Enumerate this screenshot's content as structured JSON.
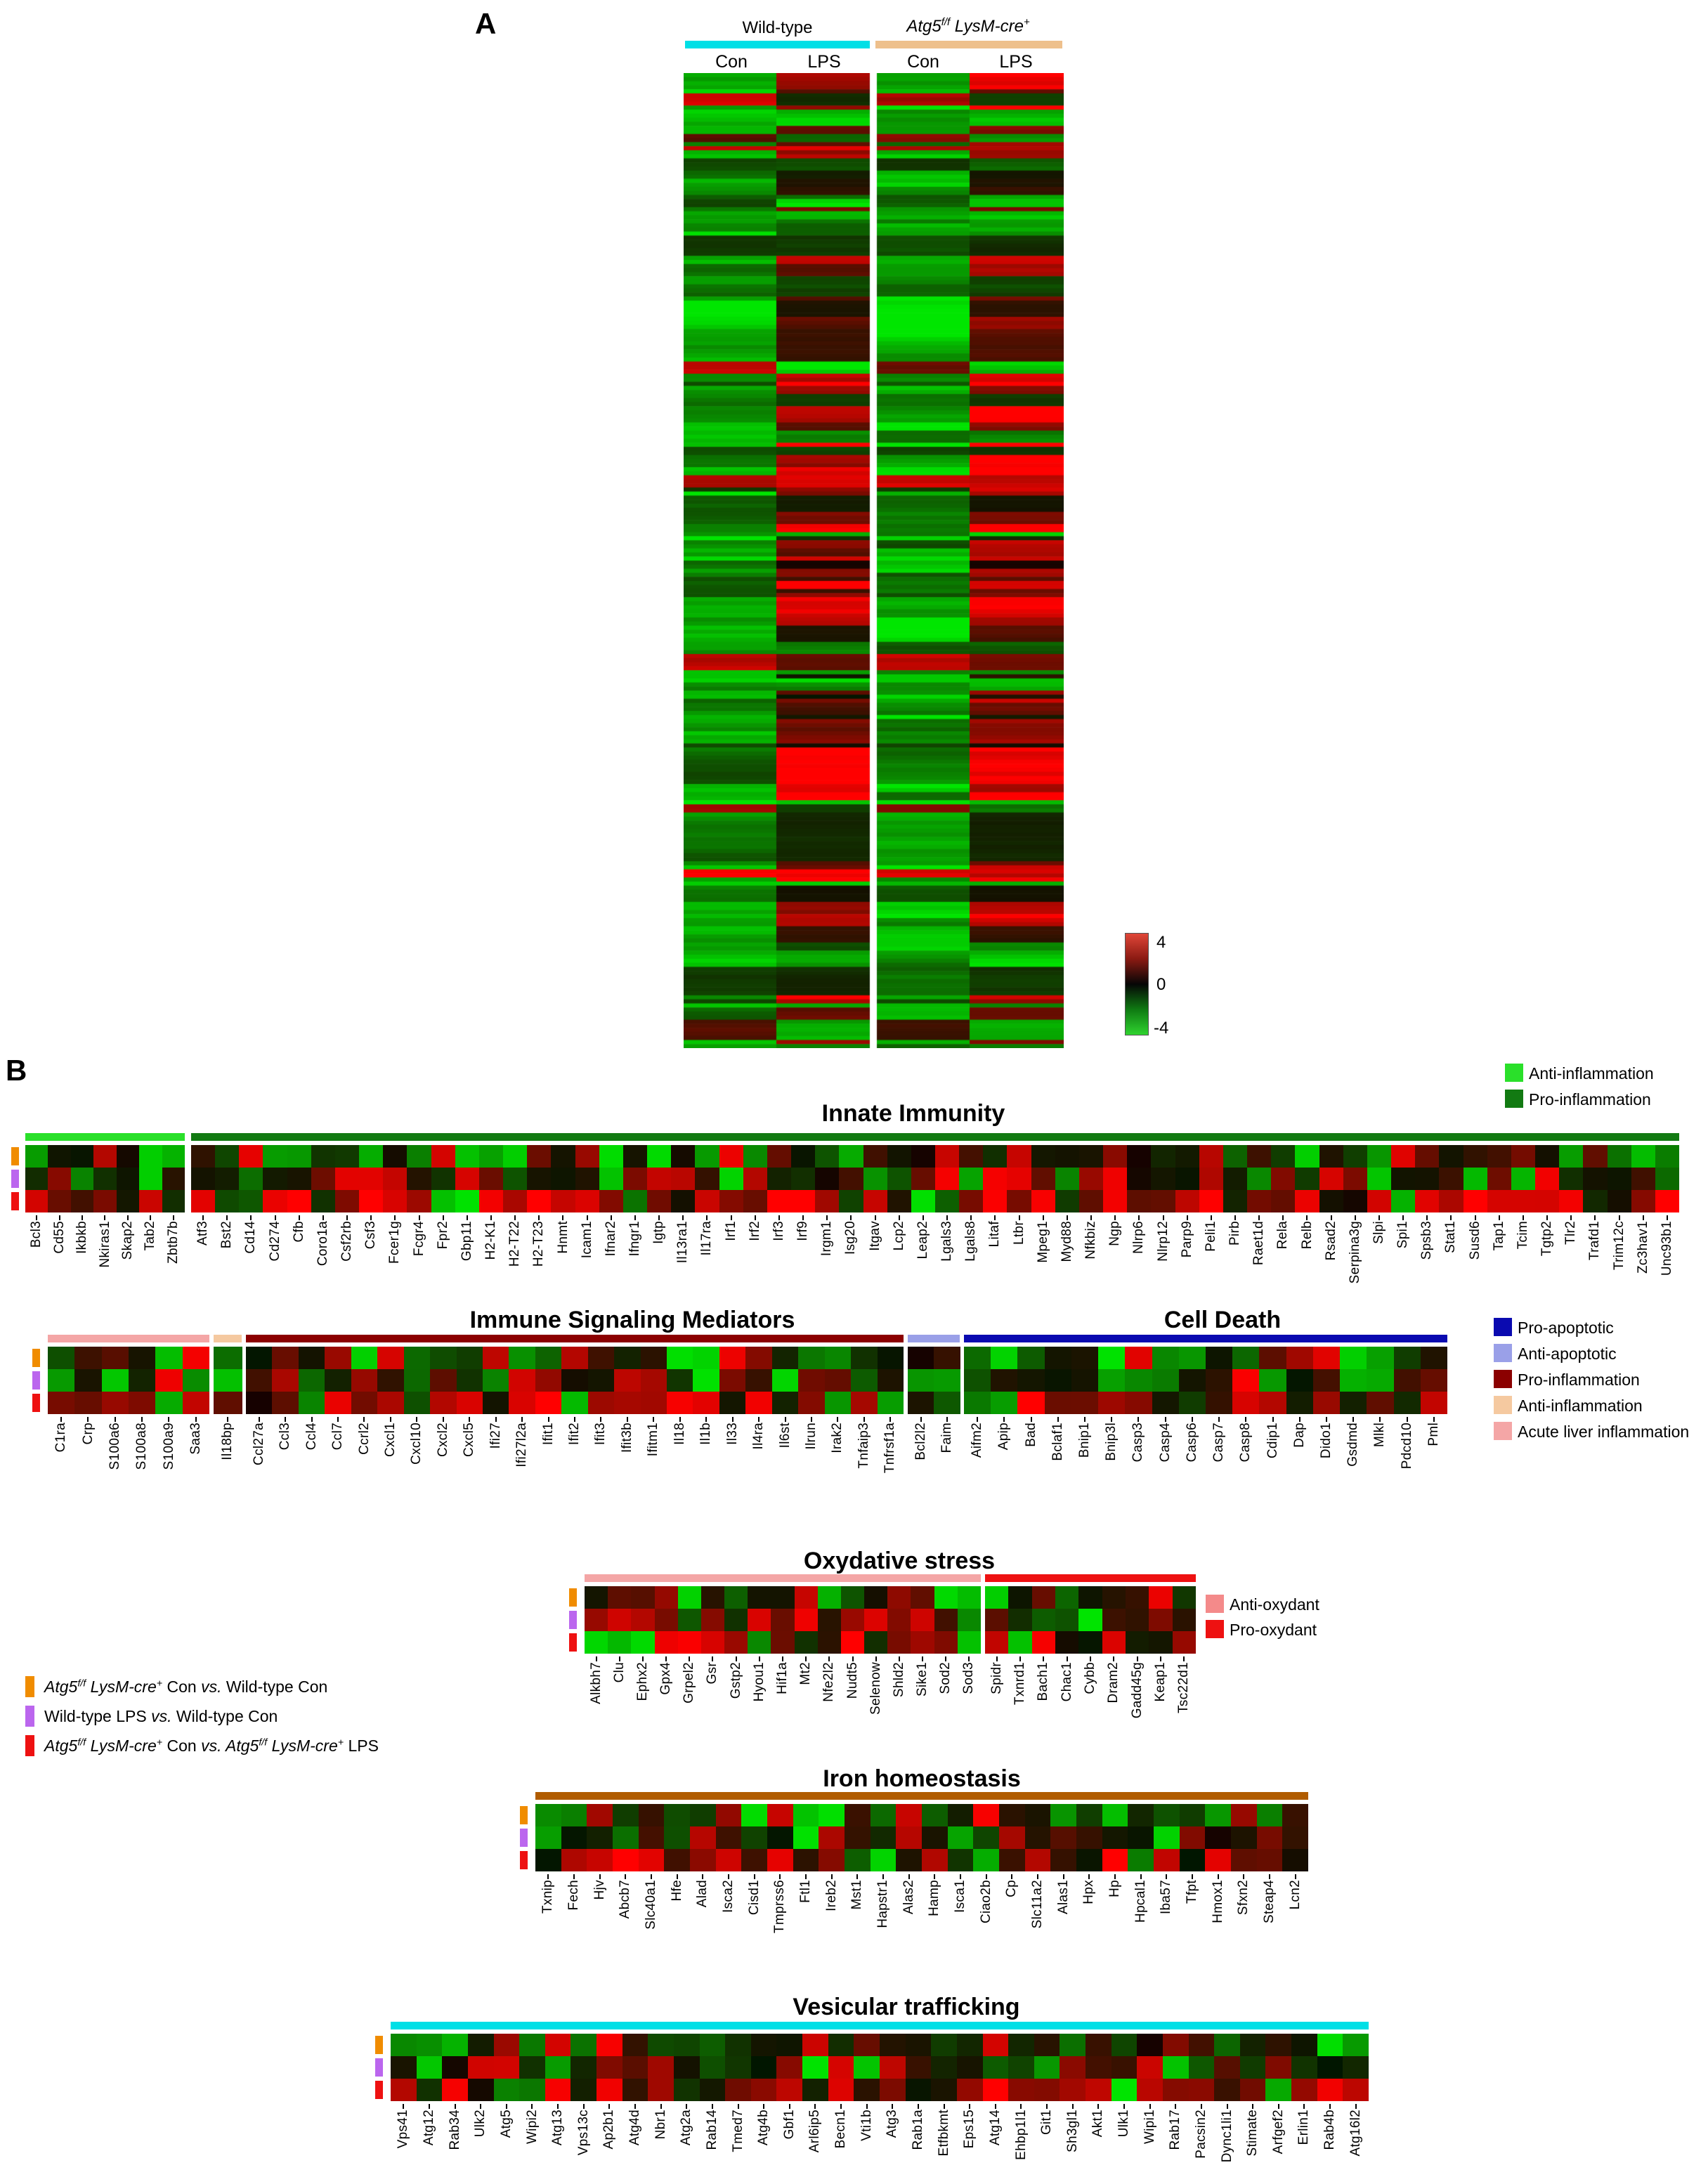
{
  "figure": {
    "panel_a_label": "A",
    "panel_b_label": "B"
  },
  "chart_data": {
    "type": "heatmap",
    "value_range": [
      -4,
      4
    ],
    "panel_a": {
      "type": "heatmap",
      "rows": 240,
      "seed": 20,
      "col_groups": [
        {
          "label_rich": [
            {
              "t": "Wild-type"
            }
          ],
          "bar_color": "#00dfe6",
          "cols": [
            "Con",
            "LPS"
          ]
        },
        {
          "label_rich": [
            {
              "t": "Atg5",
              "i": 1
            },
            {
              "t": "f/f",
              "i": 1,
              "s": 1
            },
            {
              "t": " LysM-cre",
              "i": 1
            },
            {
              "t": "+",
              "i": 1,
              "s": 1
            }
          ],
          "bar_color": "#eec08c",
          "cols": [
            "Con",
            "LPS"
          ]
        }
      ],
      "colorbar": {
        "ticks": [
          "4",
          "0",
          "-4"
        ],
        "max": 4,
        "min": -4
      }
    },
    "comparisons": [
      {
        "color": "#f08c00",
        "label_rich": [
          {
            "t": "Atg5",
            "i": 1
          },
          {
            "t": "f/f",
            "i": 1,
            "s": 1
          },
          {
            "t": " LysM-cre",
            "i": 1
          },
          {
            "t": "+",
            "i": 1,
            "s": 1
          },
          {
            "t": " Con "
          },
          {
            "t": "vs.",
            "i": 1
          },
          {
            "t": " Wild-type Con"
          }
        ],
        "gen": {
          "red": 0.2,
          "green": 0.36,
          "mag": 1.0
        }
      },
      {
        "color": "#bb66ee",
        "label_rich": [
          {
            "t": "Wild-type LPS "
          },
          {
            "t": "vs.",
            "i": 1
          },
          {
            "t": " Wild-type Con"
          }
        ],
        "gen": {
          "red": 0.32,
          "green": 0.24,
          "mag": 1.0
        }
      },
      {
        "color": "#ee1111",
        "label_rich": [
          {
            "t": "Atg5",
            "i": 1
          },
          {
            "t": "f/f",
            "i": 1,
            "s": 1
          },
          {
            "t": " LysM-cre",
            "i": 1
          },
          {
            "t": "+",
            "i": 1,
            "s": 1
          },
          {
            "t": " Con "
          },
          {
            "t": "vs.",
            "i": 1
          },
          {
            "t": " Atg5",
            "i": 1
          },
          {
            "t": "f/f",
            "i": 1,
            "s": 1
          },
          {
            "t": " LysM-cre",
            "i": 1
          },
          {
            "t": "+",
            "i": 1,
            "s": 1
          },
          {
            "t": " LPS"
          }
        ],
        "gen": {
          "red": 0.6,
          "green": 0.12,
          "mag": 1.1
        }
      }
    ],
    "sections": [
      {
        "id": "innate",
        "title": "Innate Immunity",
        "seed": 11,
        "legend": [
          {
            "color": "#2ae02a",
            "label": "Anti-inflammation"
          },
          {
            "color": "#127a12",
            "label": "Pro-inflammation"
          }
        ],
        "segments": [
          {
            "color": "#2ae02a",
            "genes": [
              "Bcl3",
              "Cd55",
              "Ikbkb",
              "Nkiras1",
              "Skap2",
              "Tab2",
              "Zbtb7b"
            ]
          },
          {
            "color": "#127a12",
            "genes": [
              "Atf3",
              "Bst2",
              "Cd14",
              "Cd274",
              "Cfb",
              "Coro1a",
              "Csf2rb",
              "Csf3",
              "Fcer1g",
              "Fcgr4",
              "Fpr2",
              "Gbp11",
              "H2-K1",
              "H2-T22",
              "H2-T23",
              "Hnmt",
              "Icam1",
              "Ifnar2",
              "Ifngr1",
              "Igtp",
              "Il13ra1",
              "Il17ra",
              "Irf1",
              "Irf2",
              "Irf3",
              "Irf9",
              "Irgm1",
              "Isg20",
              "Itgav",
              "Lcp2",
              "Leap2",
              "Lgals3",
              "Lgals8",
              "Litaf",
              "Ltbr",
              "Mpeg1",
              "Myd88",
              "Nfkbiz",
              "Ngp",
              "Nlrp6",
              "Nlrp12",
              "Parp9",
              "Peli1",
              "Pirb",
              "Raet1d",
              "Rela",
              "Relb",
              "Rsad2",
              "Serpina3g",
              "Slpi",
              "Spi1",
              "Spsb3",
              "Stat1",
              "Susd6",
              "Tap1",
              "Tcim",
              "Tgtp2",
              "Tlr2",
              "Trafd1",
              "Trim12c",
              "Zc3hav1",
              "Unc93b1"
            ]
          }
        ]
      },
      {
        "id": "immune",
        "titles": [
          "Immune Signaling Mediators",
          "Cell Death"
        ],
        "seed": 12,
        "legend": [
          {
            "color": "#0a0ab0",
            "label": "Pro-apoptotic"
          },
          {
            "color": "#9aa0e8",
            "label": "Anti-apoptotic"
          },
          {
            "color": "#8b0000",
            "label": "Pro-inflammation"
          },
          {
            "color": "#f5c9a0",
            "label": "Anti-inflammation"
          },
          {
            "color": "#f4a6a6",
            "label": "Acute liver inflammation"
          }
        ],
        "segments": [
          {
            "color": "#f4a6a6",
            "genes": [
              "C1ra",
              "Crp",
              "S100a6",
              "S100a8",
              "S100a9",
              "Saa3"
            ]
          },
          {
            "color": "#f5c9a0",
            "genes": [
              "Il18bp"
            ]
          },
          {
            "color": "#8b0000",
            "genes": [
              "Ccl27a",
              "Ccl3",
              "Ccl4",
              "Ccl7",
              "Ccrl2",
              "Cxcl1",
              "Cxcl10",
              "Cxcl2",
              "Cxcl5",
              "Ifi27",
              "Ifi27l2a",
              "Ifit1",
              "Ifit2",
              "Ifit3",
              "Ifit3b",
              "Ifitm1",
              "Il18",
              "Il1b",
              "Il33",
              "Il4ra",
              "Il6st",
              "Ilrun",
              "Irak2",
              "Tnfaip3",
              "Tnfrsf1a"
            ]
          },
          {
            "color": "#9aa0e8",
            "genes": [
              "Bcl2l2",
              "Faim"
            ]
          },
          {
            "color": "#0a0ab0",
            "genes": [
              "Aifm2",
              "Apip",
              "Bad",
              "Bclaf1",
              "Bnip1",
              "Bnip3l",
              "Casp3",
              "Casp4",
              "Casp6",
              "Casp7",
              "Casp8",
              "Cdip1",
              "Dap",
              "Dido1",
              "Gsdmd",
              "Mlkl",
              "Pdcd10",
              "Pml"
            ]
          }
        ]
      },
      {
        "id": "oxy",
        "title": "Oxydative stress",
        "seed": 13,
        "legend": [
          {
            "color": "#f48a8a",
            "label": "Anti-oxydant"
          },
          {
            "color": "#ee1111",
            "label": "Pro-oxydant"
          }
        ],
        "segments": [
          {
            "color": "#f4a6a6",
            "genes": [
              "Alkbh7",
              "Clu",
              "Ephx2",
              "Gpx4",
              "Grpel2",
              "Gsr",
              "Gstp2",
              "Hyou1",
              "Hif1a",
              "Mt2",
              "Nfe2l2",
              "Nudt5",
              "Selenow",
              "Shld2",
              "Sike1",
              "Sod2",
              "Sod3"
            ]
          },
          {
            "color": "#ee1111",
            "genes": [
              "Spidr",
              "Txnrd1",
              "Bach1",
              "Chac1",
              "Cybb",
              "Dram2",
              "Gadd45g",
              "Keap1",
              "Tsc22d1"
            ]
          }
        ]
      },
      {
        "id": "iron",
        "title": "Iron homeostasis",
        "seed": 14,
        "segments": [
          {
            "color": "#b05c00",
            "genes": [
              "Txnip",
              "Fech",
              "Hjv",
              "Abcb7",
              "Slc40a1",
              "Hfe",
              "Alad",
              "Isca2",
              "Cisd1",
              "Tmprss6",
              "Ftl1",
              "Ireb2",
              "Mst1",
              "Hapstr1",
              "Alas2",
              "Hamp",
              "Isca1",
              "Ciao2b",
              "Cp",
              "Slc11a2",
              "Alas1",
              "Hpx",
              "Hp",
              "Hpcal1",
              "Iba57",
              "Tfpt",
              "Hmox1",
              "Sfxn2",
              "Steap4",
              "Lcn2"
            ]
          }
        ]
      },
      {
        "id": "ves",
        "title": "Vesicular trafficking",
        "seed": 15,
        "segments": [
          {
            "color": "#00dfe6",
            "genes": [
              "Vps41",
              "Atg12",
              "Rab34",
              "Ulk2",
              "Atg5",
              "Wipi2",
              "Atg13",
              "Vps13c",
              "Ap2b1",
              "Atg4d",
              "Nbr1",
              "Atg2a",
              "Rab14",
              "Tmed7",
              "Atg4b",
              "Gbf1",
              "Arl6ip5",
              "Becn1",
              "Vti1b",
              "Atg3",
              "Rab1a",
              "Etfbkmt",
              "Eps15",
              "Atg14",
              "Ehbp1l1",
              "Git1",
              "Sh3gl1",
              "Akt1",
              "Ulk1",
              "Wipi1",
              "Rab17",
              "Pacsin2",
              "Dync1li1",
              "Stimate",
              "Arfgef2",
              "Erlin1",
              "Rab4b",
              "Atg16l2"
            ]
          }
        ]
      }
    ]
  }
}
